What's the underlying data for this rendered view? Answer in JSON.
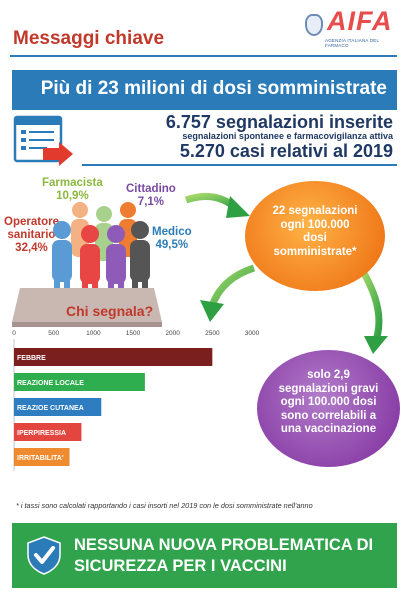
{
  "header": {
    "title": "Messaggi chiave",
    "logo_text": "AIFA",
    "logo_subtitle": "AGENZIA ITALIANA DEL FARMACO"
  },
  "banner": {
    "text": "Più di 23 milioni di dosi somministrate"
  },
  "stats": {
    "signals": "6.757 segnalazioni inserite",
    "signals_sub": "segnalazioni spontanee e farmacovigilanza attiva",
    "cases": "5.270 casi relativi al 2019"
  },
  "reporters": {
    "farmacista_label": "Farmacista",
    "farmacista_value": "10,9%",
    "cittadino_label": "Cittadino",
    "cittadino_value": "7,1%",
    "operatore_label_1": "Operatore",
    "operatore_label_2": "sanitario",
    "operatore_value": "32,4%",
    "medico_label": "Medico",
    "medico_value": "49,5%",
    "question": "Chi segnala?"
  },
  "circles": {
    "orange_lines": [
      "22 segnalazioni",
      "ogni 100.000",
      "dosi",
      "somministrate*"
    ],
    "purple_lines": [
      "solo 2,9",
      "segnalazioni gravi",
      "ogni 100.000 dosi",
      "sono correlabili a",
      "una vaccinazione"
    ]
  },
  "chart_data": {
    "type": "bar",
    "orientation": "horizontal",
    "categories": [
      "FEBBRE",
      "REAZIONE LOCALE",
      "REAZIOE CUTANEA",
      "IPERPIRESSIA",
      "IRRITABILITA'"
    ],
    "values": [
      2500,
      1650,
      1100,
      850,
      700
    ],
    "colors": [
      "#7b1e1e",
      "#2eae4f",
      "#2f7dc1",
      "#e2463f",
      "#ef8a2f"
    ],
    "ticks": [
      0,
      500,
      1000,
      1500,
      2000,
      2500,
      3000
    ],
    "xlim": [
      0,
      3000
    ],
    "grid": false
  },
  "footnote": "* i tassi sono calcolati rapportando i casi insorti nel 2019 con le dosi somministrate nell'anno",
  "bottom": {
    "line1": "NESSUNA NUOVA PROBLEMATICA DI",
    "line2": "SICUREZZA PER I VACCINI"
  },
  "colors": {
    "accent_blue": "#2b7bb9",
    "title_red": "#c0392b",
    "orange": "#f07a1a",
    "purple": "#8a3fa7",
    "green": "#30a34c"
  }
}
